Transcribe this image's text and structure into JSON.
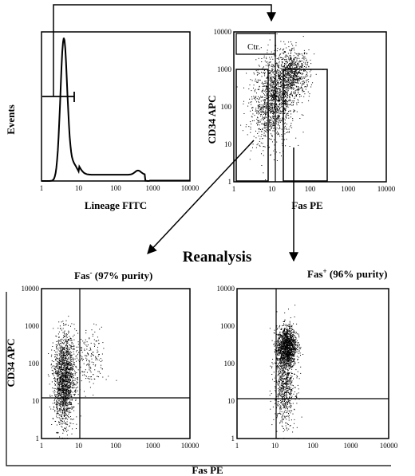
{
  "reanalysis_label": "Reanalysis",
  "gate_label": "Ctr.",
  "ticks": [
    "1",
    "10",
    "100",
    "1000",
    "10000"
  ],
  "panels": {
    "histogram": {
      "ylabel": "Events",
      "xlabel": "Lineage FITC"
    },
    "sort": {
      "ylabel": "CD34 APC",
      "xlabel": "Fas PE"
    },
    "fas_neg": {
      "title_main": "Fas",
      "title_sup": "-",
      "title_rest": " (97% purity)",
      "ylabel": "CD34 APC"
    },
    "fas_pos": {
      "title_main": "Fas",
      "title_sup": "+",
      "title_rest": " (96% purity)"
    },
    "bottom_xlabel": "Fas PE"
  },
  "chart_data": [
    {
      "type": "histogram",
      "xlabel": "Lineage FITC",
      "ylabel": "Events",
      "xscale": "log",
      "xlim": [
        1,
        10000
      ],
      "peak_at": 4,
      "gate": [
        1,
        4
      ]
    },
    {
      "type": "scatter",
      "xlabel": "Fas PE",
      "ylabel": "CD34 APC",
      "xscale": "log",
      "yscale": "log",
      "xlim": [
        1,
        10000
      ],
      "ylim": [
        1,
        10000
      ],
      "population_center": [
        12,
        200
      ],
      "gates": [
        {
          "name": "Ctr.",
          "x": [
            1,
            15
          ],
          "y": [
            500,
            10000
          ]
        },
        {
          "name": "Fas-",
          "x": [
            1,
            8
          ],
          "y": [
            1,
            1000
          ]
        },
        {
          "name": "Fas+",
          "x": [
            20,
            300
          ],
          "y": [
            1,
            1000
          ]
        }
      ]
    },
    {
      "type": "scatter",
      "title": "Fas- (97% purity)",
      "xlabel": "Fas PE",
      "ylabel": "CD34 APC",
      "xscale": "log",
      "yscale": "log",
      "xlim": [
        1,
        10000
      ],
      "ylim": [
        1,
        10000
      ],
      "quadrant": [
        10,
        10
      ],
      "purity_percent": 97
    },
    {
      "type": "scatter",
      "title": "Fas+ (96% purity)",
      "xlabel": "Fas PE",
      "ylabel": "CD34 APC",
      "xscale": "log",
      "yscale": "log",
      "xlim": [
        1,
        10000
      ],
      "ylim": [
        1,
        10000
      ],
      "quadrant": [
        10,
        10
      ],
      "purity_percent": 96
    }
  ]
}
